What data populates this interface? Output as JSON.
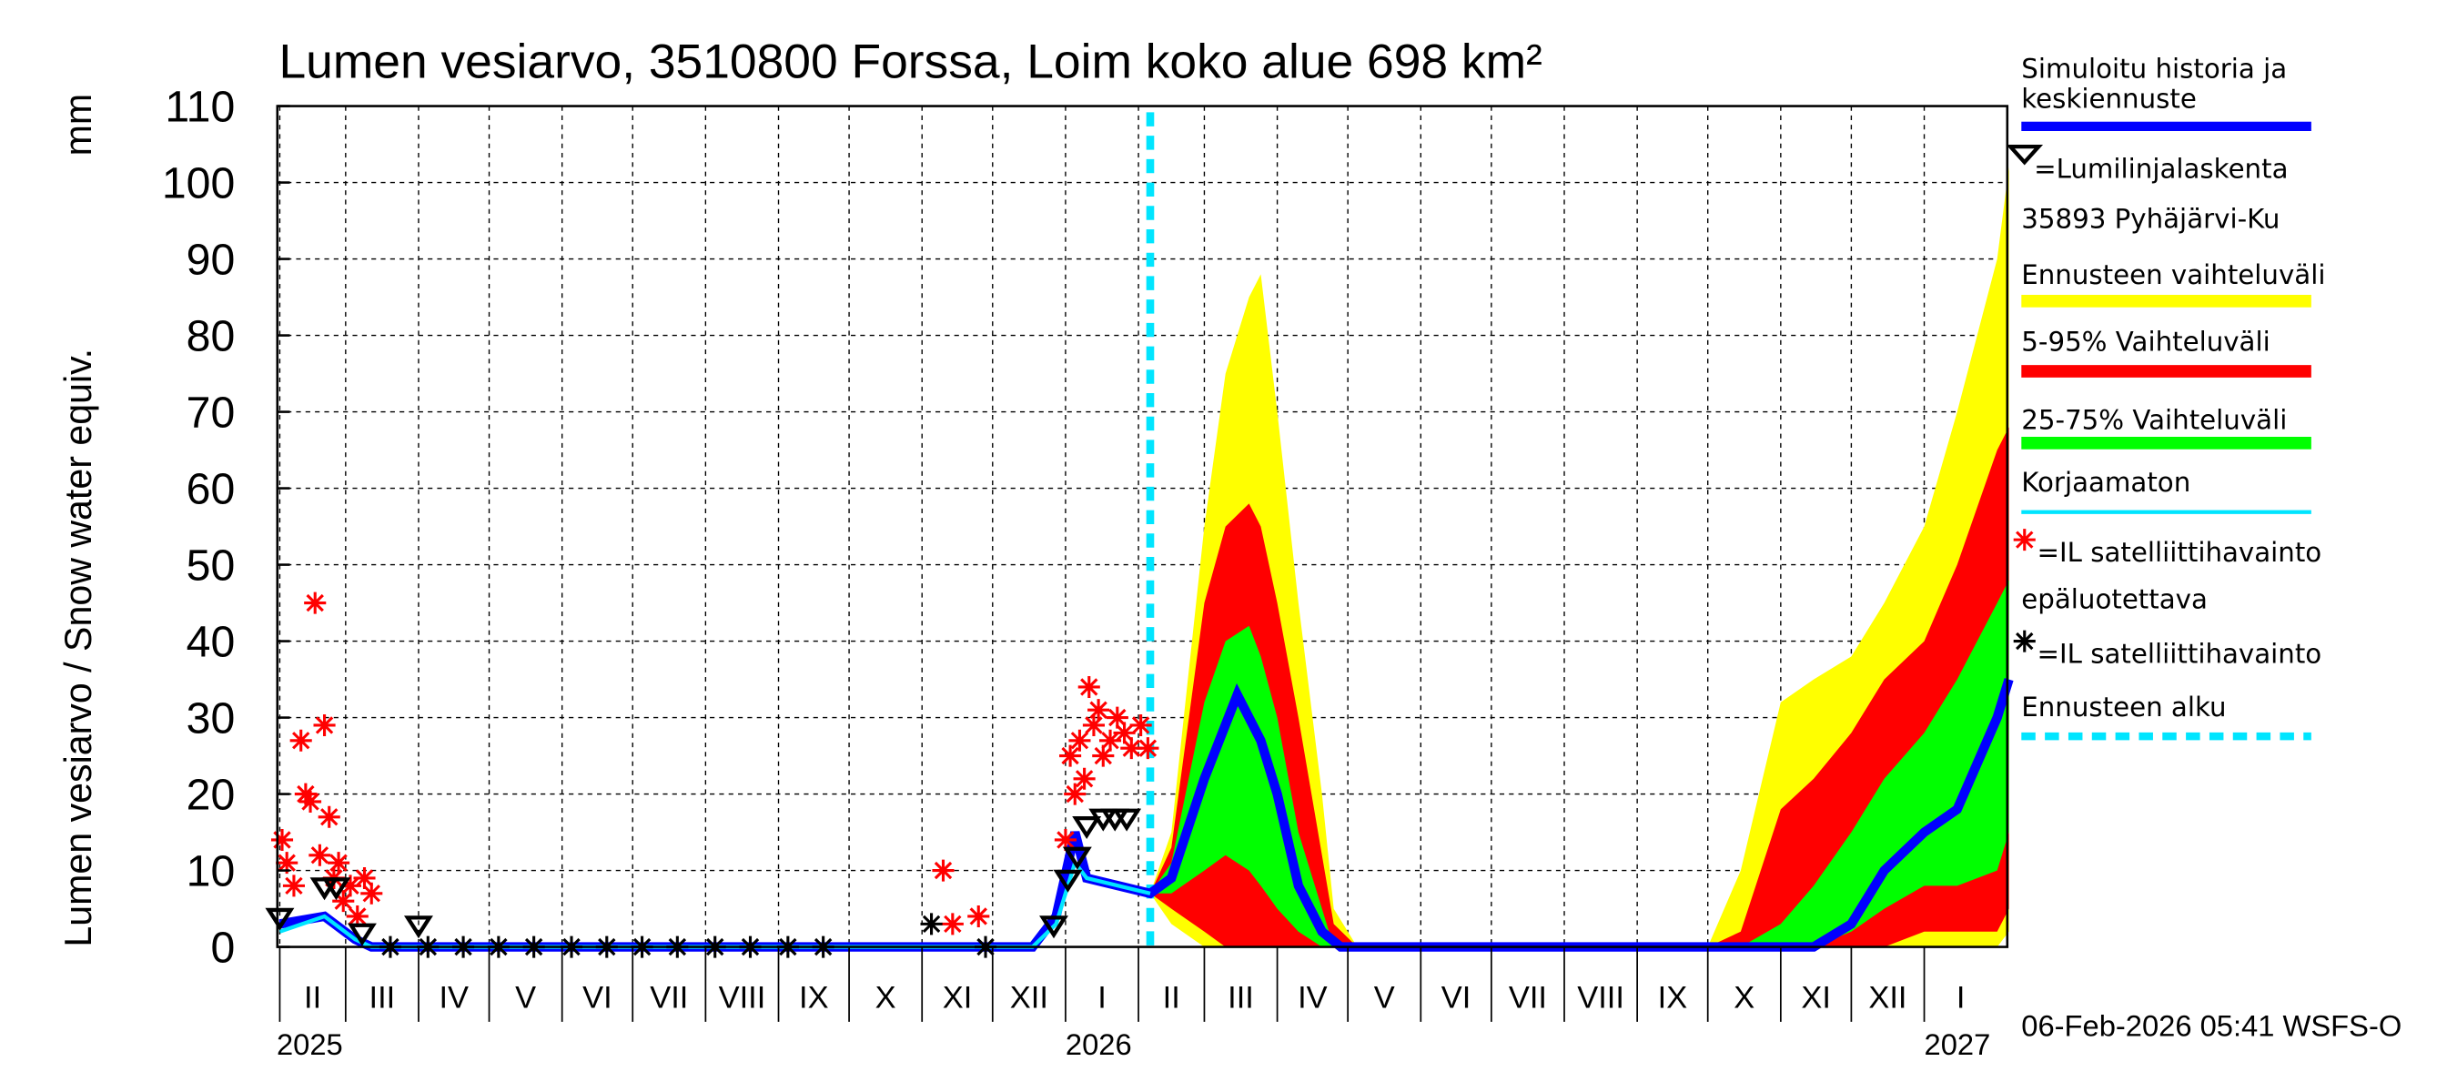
{
  "chart_data": {
    "type": "area",
    "title": "Lumen vesiarvo, 3510800 Forssa, Loim koko alue 698 km²",
    "ylabel": "Lumen vesiarvo / Snow water equiv.",
    "yunit": "mm",
    "ylim": [
      0,
      110
    ],
    "yticks": [
      0,
      10,
      20,
      30,
      40,
      50,
      60,
      70,
      80,
      90,
      100,
      110
    ],
    "xlim": [
      "2025-02-01",
      "2027-02-07"
    ],
    "grid": true,
    "legend_placement": "right",
    "month_labels": [
      "II",
      "III",
      "IV",
      "V",
      "VI",
      "VII",
      "VIII",
      "IX",
      "X",
      "XI",
      "XII",
      "I",
      "II",
      "III",
      "IV",
      "V",
      "VI",
      "VII",
      "VIII",
      "IX",
      "X",
      "XI",
      "XII",
      "I"
    ],
    "year_labels": [
      "2025",
      "2026",
      "2027"
    ],
    "forecast_start": "2026-02-06",
    "timestamp": "06-Feb-2026 05:41 WSFS-O",
    "colors": {
      "median": "#0000ff",
      "range": "#ffff00",
      "p5_95": "#ff0000",
      "p25_75": "#00ff00",
      "uncorrected": "#00e5ff",
      "forecast_start": "#00e5ff",
      "sat_unreliable": "#ff0000",
      "sat": "#000000",
      "snow_course": "#000000"
    },
    "bands": {
      "dates": [
        "2026-02-06",
        "2026-02-15",
        "2026-03-01",
        "2026-03-10",
        "2026-03-20",
        "2026-03-25",
        "2026-04-01",
        "2026-04-10",
        "2026-04-20",
        "2026-04-25",
        "2026-05-05",
        "2026-10-01",
        "2026-10-15",
        "2026-11-01",
        "2026-11-15",
        "2026-12-01",
        "2026-12-15",
        "2027-01-01",
        "2027-01-15",
        "2027-02-01",
        "2027-02-06"
      ],
      "range_low": [
        7,
        3,
        0,
        0,
        0,
        0,
        0,
        0,
        0,
        0,
        0,
        0,
        0,
        0,
        0,
        0,
        0,
        0,
        0,
        0,
        2
      ],
      "range_high": [
        7,
        15,
        55,
        75,
        85,
        88,
        70,
        45,
        20,
        5,
        0,
        0,
        10,
        32,
        35,
        38,
        45,
        55,
        70,
        90,
        102
      ],
      "p5_low": [
        7,
        5,
        2,
        0,
        0,
        0,
        0,
        0,
        0,
        0,
        0,
        0,
        0,
        0,
        0,
        0,
        0,
        2,
        2,
        2,
        5
      ],
      "p5_high": [
        7,
        13,
        45,
        55,
        58,
        55,
        45,
        30,
        12,
        3,
        0,
        0,
        2,
        18,
        22,
        28,
        35,
        40,
        50,
        65,
        68
      ],
      "p25_low": [
        7,
        7,
        10,
        12,
        10,
        8,
        5,
        2,
        0,
        0,
        0,
        0,
        0,
        0,
        0,
        2,
        5,
        8,
        8,
        10,
        15
      ],
      "p25_high": [
        7,
        11,
        32,
        40,
        42,
        38,
        30,
        15,
        5,
        0,
        0,
        0,
        0,
        3,
        8,
        15,
        22,
        28,
        35,
        45,
        48
      ]
    },
    "series": [
      {
        "name": "Simuloitu historia ja keskiennuste",
        "dates": [
          "2025-02-01",
          "2025-02-20",
          "2025-03-05",
          "2025-03-12",
          "2025-12-18",
          "2025-12-28",
          "2026-01-05",
          "2026-01-10",
          "2026-02-06",
          "2026-02-15",
          "2026-03-01",
          "2026-03-15",
          "2026-03-25",
          "2026-04-01",
          "2026-04-10",
          "2026-04-20",
          "2026-04-28",
          "2026-11-15",
          "2026-12-01",
          "2026-12-15",
          "2027-01-01",
          "2027-01-15",
          "2027-02-01",
          "2027-02-06"
        ],
        "values": [
          3,
          4,
          1,
          0,
          0,
          4,
          15,
          9,
          7,
          9,
          22,
          33,
          27,
          20,
          8,
          2,
          0,
          0,
          3,
          10,
          15,
          18,
          30,
          35
        ]
      },
      {
        "name": "Korjaamaton",
        "dates": [
          "2025-02-01",
          "2025-02-20",
          "2025-03-05",
          "2025-03-12",
          "2025-12-18",
          "2025-12-28",
          "2026-01-05",
          "2026-01-10",
          "2026-02-06"
        ],
        "values": [
          2,
          4,
          1,
          0,
          0,
          3,
          11,
          9,
          7
        ]
      }
    ],
    "snow_course": {
      "dates": [
        "2025-02-01",
        "2025-02-20",
        "2025-02-25",
        "2025-03-08",
        "2025-04-01",
        "2025-12-27",
        "2026-01-02",
        "2026-01-06",
        "2026-01-10",
        "2026-01-17",
        "2026-01-22",
        "2026-01-27"
      ],
      "values": [
        3,
        7,
        7,
        1,
        2,
        2,
        8,
        11,
        15,
        16,
        16,
        16
      ]
    },
    "sat_unreliable": {
      "dates": [
        "2025-02-02",
        "2025-02-04",
        "2025-02-07",
        "2025-02-10",
        "2025-02-12",
        "2025-02-14",
        "2025-02-16",
        "2025-02-18",
        "2025-02-20",
        "2025-02-22",
        "2025-02-24",
        "2025-02-26",
        "2025-02-28",
        "2025-03-03",
        "2025-03-06",
        "2025-03-09",
        "2025-03-12",
        "2025-11-10",
        "2025-11-14",
        "2025-11-25",
        "2026-01-01",
        "2026-01-03",
        "2026-01-05",
        "2026-01-07",
        "2026-01-09",
        "2026-01-11",
        "2026-01-13",
        "2026-01-15",
        "2026-01-17",
        "2026-01-20",
        "2026-01-23",
        "2026-01-26",
        "2026-01-29",
        "2026-02-02",
        "2026-02-05"
      ],
      "values": [
        14,
        11,
        8,
        27,
        20,
        19,
        45,
        12,
        29,
        17,
        9,
        11,
        6,
        8,
        4,
        9,
        7,
        10,
        3,
        4,
        14,
        25,
        20,
        27,
        22,
        34,
        29,
        31,
        25,
        27,
        30,
        28,
        26,
        29,
        26
      ]
    },
    "sat": {
      "dates": [
        "2025-03-20",
        "2025-04-05",
        "2025-04-20",
        "2025-05-05",
        "2025-05-20",
        "2025-06-05",
        "2025-06-20",
        "2025-07-05",
        "2025-07-20",
        "2025-08-05",
        "2025-08-20",
        "2025-09-05",
        "2025-09-20",
        "2025-11-05",
        "2025-11-28"
      ],
      "values": [
        0,
        0,
        0,
        0,
        0,
        0,
        0,
        0,
        0,
        0,
        0,
        0,
        0,
        3,
        0
      ]
    }
  },
  "legend": {
    "median_1": "Simuloitu historia ja",
    "median_2": "keskiennuste",
    "snow_course": "=Lumilinjalaskenta",
    "station": "35893 Pyhäjärvi-Ku",
    "range": "Ennusteen vaihteluväli",
    "p5_95": "5-95% Vaihteluväli",
    "p25_75": "25-75% Vaihteluväli",
    "uncorrected": "Korjaamaton",
    "sat_unreliable_1": "=IL satelliittihavainto",
    "sat_unreliable_2": "epäluotettava",
    "sat": "=IL satelliittihavainto",
    "forecast_start": "Ennusteen alku"
  }
}
